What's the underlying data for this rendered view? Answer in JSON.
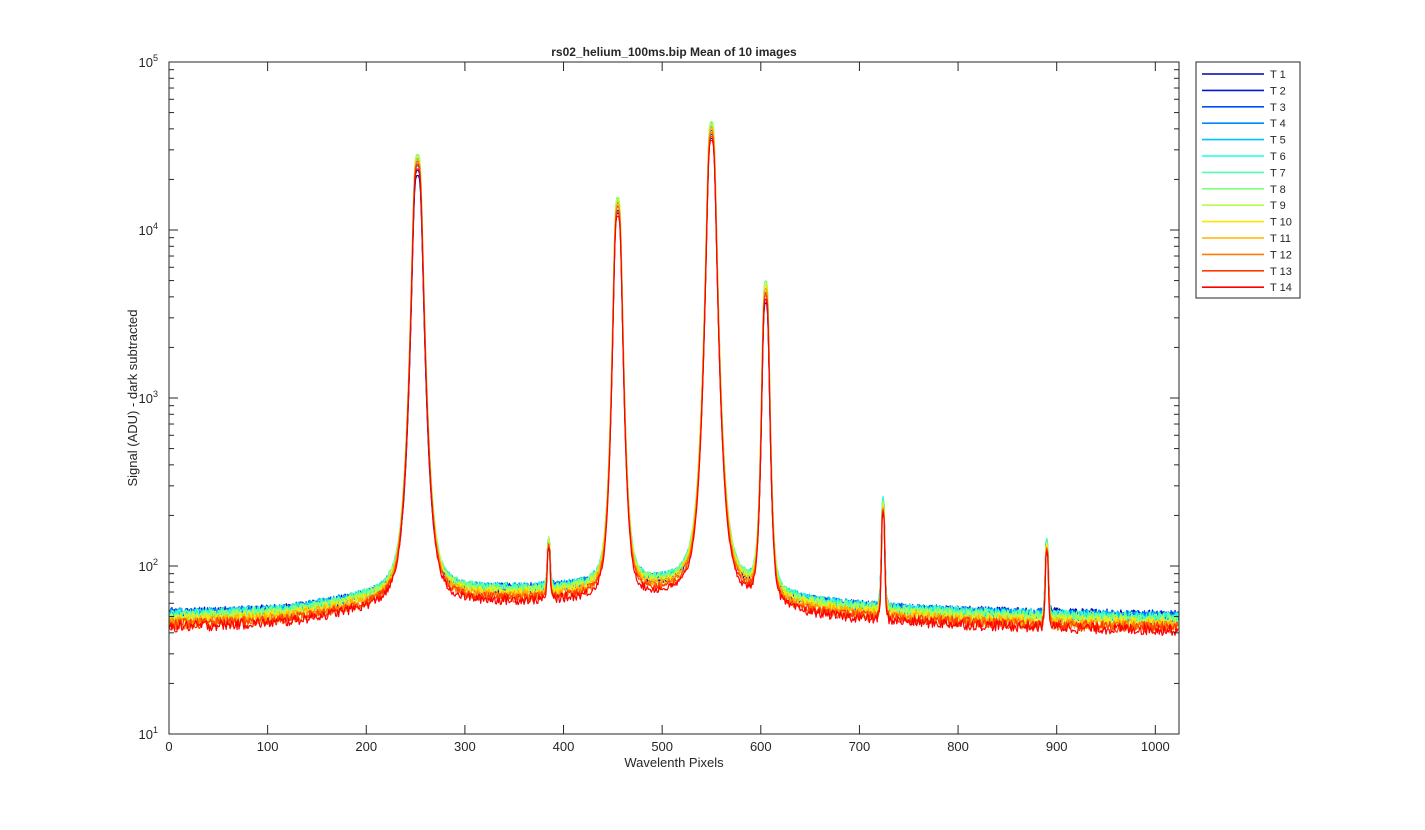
{
  "chart_data": {
    "type": "line",
    "title": "rs02_helium_100ms.bip  Mean of 10 images",
    "xlabel": "Wavelenth Pixels",
    "ylabel": "Signal (ADU) - dark subtracted",
    "xlim": [
      0,
      1024
    ],
    "ylim": [
      10,
      100000
    ],
    "yscale": "log",
    "xticks": [
      0,
      100,
      200,
      300,
      400,
      500,
      600,
      700,
      800,
      900,
      1000
    ],
    "xtick_labels": [
      "0",
      "100",
      "200",
      "300",
      "400",
      "500",
      "600",
      "700",
      "800",
      "900",
      "1000"
    ],
    "yticks": [
      10,
      100,
      1000,
      10000,
      100000
    ],
    "ytick_labels": [
      {
        "base": "10",
        "exp": "1"
      },
      {
        "base": "10",
        "exp": "2"
      },
      {
        "base": "10",
        "exp": "3"
      },
      {
        "base": "10",
        "exp": "4"
      },
      {
        "base": "10",
        "exp": "5"
      }
    ],
    "legend_position": "outside-top-right",
    "grid": false,
    "peaks": [
      {
        "x": 252,
        "heights": [
          21000,
          22500,
          24000,
          25500,
          26500,
          27500,
          28000,
          28000,
          27500,
          27000,
          26000,
          25000,
          24500,
          23000
        ],
        "width": 4.2
      },
      {
        "x": 455,
        "heights": [
          12500,
          13000,
          13800,
          14500,
          15000,
          15200,
          15500,
          15500,
          15200,
          14800,
          14200,
          13600,
          12800,
          12000
        ],
        "width": 3.5
      },
      {
        "x": 550,
        "heights": [
          35000,
          37000,
          39000,
          41000,
          42500,
          43500,
          44000,
          44000,
          43000,
          42000,
          40000,
          38000,
          36000,
          34000
        ],
        "width": 3.8
      },
      {
        "x": 605,
        "heights": [
          3600,
          3800,
          4100,
          4400,
          4600,
          4800,
          4900,
          4900,
          4800,
          4600,
          4400,
          4200,
          4000,
          3800
        ],
        "width": 3.0
      },
      {
        "x": 385,
        "heights": [
          68,
          68,
          69,
          69,
          70,
          70,
          70,
          70,
          69,
          68,
          67,
          66,
          66,
          65
        ],
        "width": 1.5
      },
      {
        "x": 724,
        "heights": [
          190,
          190,
          195,
          195,
          200,
          200,
          195,
          190,
          185,
          180,
          175,
          170,
          165,
          160
        ],
        "width": 1.6
      },
      {
        "x": 890,
        "heights": [
          88,
          88,
          90,
          92,
          93,
          93,
          92,
          90,
          88,
          86,
          84,
          82,
          80,
          78
        ],
        "width": 1.6
      }
    ],
    "series": [
      {
        "label": "T 1",
        "color": "#0000ad",
        "baseline_offset": 46
      },
      {
        "label": "T 2",
        "color": "#0018d4",
        "baseline_offset": 45
      },
      {
        "label": "T 3",
        "color": "#004dff",
        "baseline_offset": 45
      },
      {
        "label": "T 4",
        "color": "#0088ff",
        "baseline_offset": 44
      },
      {
        "label": "T 5",
        "color": "#00c2ff",
        "baseline_offset": 44
      },
      {
        "label": "T 6",
        "color": "#1effe0",
        "baseline_offset": 43
      },
      {
        "label": "T 7",
        "color": "#4dffb0",
        "baseline_offset": 43
      },
      {
        "label": "T 8",
        "color": "#80ff7f",
        "baseline_offset": 42
      },
      {
        "label": "T 9",
        "color": "#b3ff4c",
        "baseline_offset": 41
      },
      {
        "label": "T 10",
        "color": "#ffe500",
        "baseline_offset": 40
      },
      {
        "label": "T 11",
        "color": "#ffb000",
        "baseline_offset": 39
      },
      {
        "label": "T 12",
        "color": "#ff7a00",
        "baseline_offset": 38
      },
      {
        "label": "T 13",
        "color": "#ff3d00",
        "baseline_offset": 38
      },
      {
        "label": "T 14",
        "color": "#ff0000",
        "baseline_offset": 37
      }
    ]
  }
}
